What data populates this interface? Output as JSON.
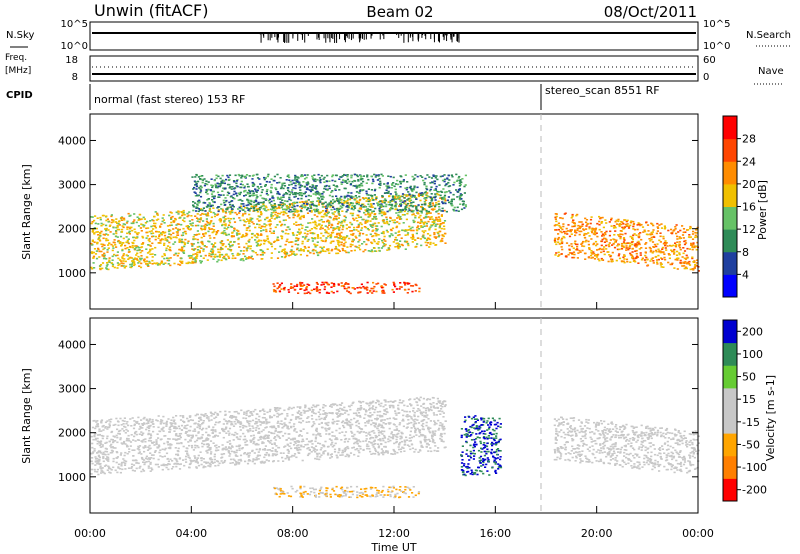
{
  "header": {
    "station": "Unwin (fitACF)",
    "beam": "Beam 02",
    "date": "08/Oct/2011"
  },
  "panels": {
    "nsky": {
      "label": "N.Sky",
      "ticks": [
        "10^5",
        "10^0"
      ],
      "right_label": "N.Search",
      "right_ticks": [
        "10^5",
        "10^0"
      ]
    },
    "freq": {
      "label": "Freq.",
      "unit": "[MHz]",
      "ticks": [
        "18",
        "8"
      ],
      "right_label": "Nave",
      "right_ticks": [
        "60",
        "0"
      ]
    },
    "cpid": {
      "label": "CPID",
      "modes": [
        "normal (fast stereo) 153 RF",
        "stereo_scan 8551 RF"
      ]
    }
  },
  "colors": {
    "power": [
      "#0000ff",
      "#1f3f9f",
      "#2e8b57",
      "#66c266",
      "#f0c000",
      "#ff8c00",
      "#ff4500",
      "#ff0000"
    ],
    "velocity": [
      "#0000d0",
      "#2e8b57",
      "#66cc33",
      "#c8c8c8",
      "#c8c8c8",
      "#ffa500",
      "#ff7f00",
      "#ff0000"
    ],
    "ground": "#888888"
  },
  "chart_data": [
    {
      "type": "heatmap",
      "title": "Power",
      "xlabel": "",
      "ylabel": "Slant Range [km]",
      "x_ticks": [
        "00:00",
        "04:00",
        "08:00",
        "12:00",
        "16:00",
        "20:00",
        "00:00"
      ],
      "y_ticks": [
        "1000",
        "2000",
        "3000",
        "4000"
      ],
      "xlim": [
        0,
        24
      ],
      "ylim": [
        180,
        4600
      ],
      "colorbar": {
        "label": "Power [dB]",
        "ticks": [
          "4",
          "8",
          "12",
          "16",
          "20",
          "24",
          "28"
        ],
        "range": [
          0,
          32
        ]
      },
      "regions": [
        {
          "name": "main band",
          "x": [
            0,
            14
          ],
          "y": [
            1050,
            2300
          ],
          "value": 18
        },
        {
          "name": "upper band",
          "x": [
            4,
            14.8
          ],
          "y": [
            2400,
            3250
          ],
          "value": 10
        },
        {
          "name": "lower band",
          "x": [
            7.2,
            13
          ],
          "y": [
            550,
            800
          ],
          "value": 26
        },
        {
          "name": "evening band",
          "x": [
            18.3,
            24
          ],
          "y": [
            1100,
            2100
          ],
          "value": 22
        }
      ]
    },
    {
      "type": "heatmap",
      "title": "Velocity",
      "xlabel": "Time UT",
      "ylabel": "Slant Range [km]",
      "x_ticks": [
        "00:00",
        "04:00",
        "08:00",
        "12:00",
        "16:00",
        "20:00",
        "00:00"
      ],
      "y_ticks": [
        "1000",
        "2000",
        "3000",
        "4000"
      ],
      "xlim": [
        0,
        24
      ],
      "ylim": [
        180,
        4600
      ],
      "colorbar": {
        "label": "Velocity [m s-1]",
        "ticks": [
          "200",
          "100",
          "50",
          "15",
          "-15",
          "-50",
          "-100",
          "-200"
        ],
        "range": [
          -250,
          250
        ]
      },
      "regions": [
        {
          "name": "main band",
          "x": [
            0,
            14
          ],
          "y": [
            1050,
            2300
          ],
          "value": 0
        },
        {
          "name": "lower band",
          "x": [
            7.2,
            13
          ],
          "y": [
            550,
            800
          ],
          "value": -60
        },
        {
          "name": "blue patch",
          "x": [
            14.6,
            16.2
          ],
          "y": [
            1050,
            2400
          ],
          "value": 200
        },
        {
          "name": "evening band",
          "x": [
            18.3,
            24
          ],
          "y": [
            1100,
            2100
          ],
          "value": 0
        }
      ]
    }
  ]
}
